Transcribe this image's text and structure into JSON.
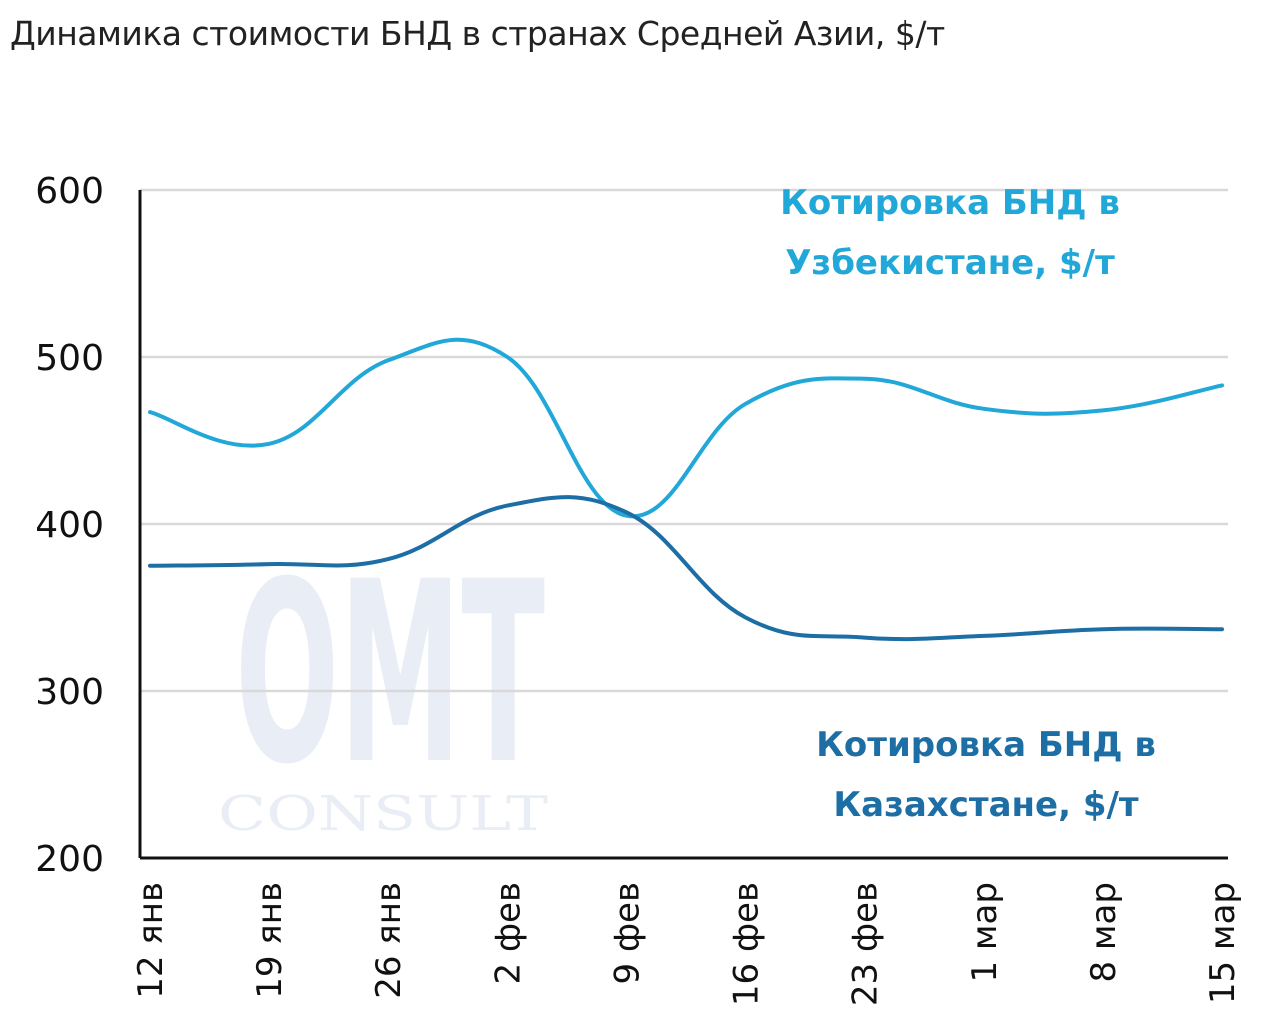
{
  "chart_data": {
    "type": "line",
    "title": "Динамика стоимости БНД в странах Средней Азии, $/т",
    "categories": [
      "12 янв",
      "19 янв",
      "26 янв",
      "2 фев",
      "9 фев",
      "16 фев",
      "23 фев",
      "1 мар",
      "8 мар",
      "15 мар"
    ],
    "ylim": [
      200,
      600
    ],
    "yticks": [
      "200",
      "300",
      "400",
      "500",
      "600"
    ],
    "grid": true,
    "series": [
      {
        "name_lines": [
          "Котировка БНД в",
          "Узбекистане,  $/т"
        ],
        "color": "#21a7d8",
        "values": [
          467,
          448,
          498,
          500,
          405,
          472,
          487,
          469,
          468,
          483
        ]
      },
      {
        "name_lines": [
          "Котировка БНД в",
          "Казахстане,  $/т"
        ],
        "color": "#1c6ea4",
        "values": [
          375,
          376,
          379,
          411,
          407,
          344,
          332,
          333,
          337,
          337
        ]
      }
    ]
  },
  "watermark": {
    "big": "OMT",
    "small": "CONSULT"
  },
  "colors": {
    "grid": "#d9d9d9",
    "axis": "#111111"
  }
}
